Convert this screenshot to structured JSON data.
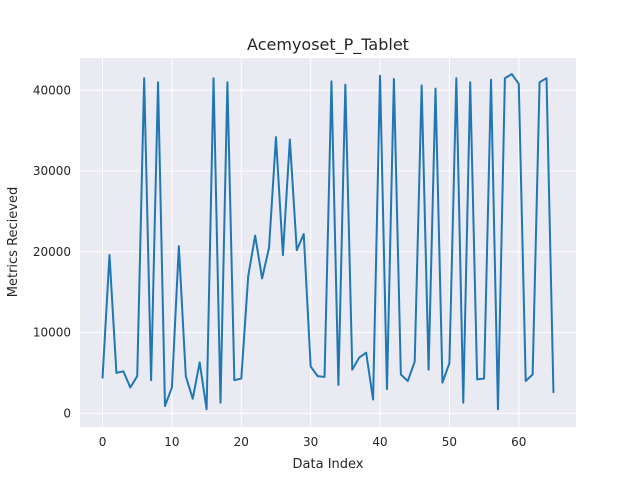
{
  "chart_data": {
    "type": "line",
    "title": "Acemyoset_P_Tablet",
    "xlabel": "Data Index",
    "ylabel": "Metrics Recieved",
    "xlim": [
      -3.25,
      68.25
    ],
    "ylim": [
      -1700,
      44000
    ],
    "x_ticks": [
      0,
      10,
      20,
      30,
      40,
      50,
      60
    ],
    "y_ticks": [
      0,
      10000,
      20000,
      30000,
      40000
    ],
    "grid": true,
    "colors": {
      "line": "#1f77b4",
      "plot_bg": "#eaeaf2",
      "grid": "#ffffff"
    },
    "series": [
      {
        "x": [
          0,
          1,
          2,
          3,
          4,
          5,
          6,
          7,
          8,
          9,
          10,
          11,
          12,
          13,
          14,
          15,
          16,
          17,
          18,
          19,
          20,
          21,
          22,
          23,
          24,
          25,
          26,
          27,
          28,
          29,
          30,
          31,
          32,
          33,
          34,
          35,
          36,
          37,
          38,
          39,
          40,
          41,
          42,
          43,
          44,
          45,
          46,
          47,
          48,
          49,
          50,
          51,
          52,
          53,
          54,
          55,
          56,
          57,
          58,
          59,
          60,
          61,
          62,
          63,
          64,
          65
        ],
        "values": [
          4400,
          19600,
          5000,
          5200,
          3200,
          4600,
          41500,
          4100,
          41000,
          900,
          3200,
          20700,
          4600,
          1800,
          6300,
          500,
          41500,
          1300,
          41000,
          4100,
          4300,
          17000,
          22000,
          16700,
          20500,
          34200,
          19600,
          33900,
          20200,
          22200,
          5800,
          4600,
          4500,
          41100,
          3500,
          40700,
          5400,
          6900,
          7500,
          1700,
          41800,
          3000,
          41400,
          4800,
          4000,
          6400,
          40600,
          5400,
          40200,
          3800,
          6200,
          41500,
          1300,
          41000,
          4200,
          4300,
          41300,
          500,
          41500,
          42000,
          40800,
          4000,
          4800,
          41000,
          41500,
          2600
        ]
      }
    ]
  }
}
